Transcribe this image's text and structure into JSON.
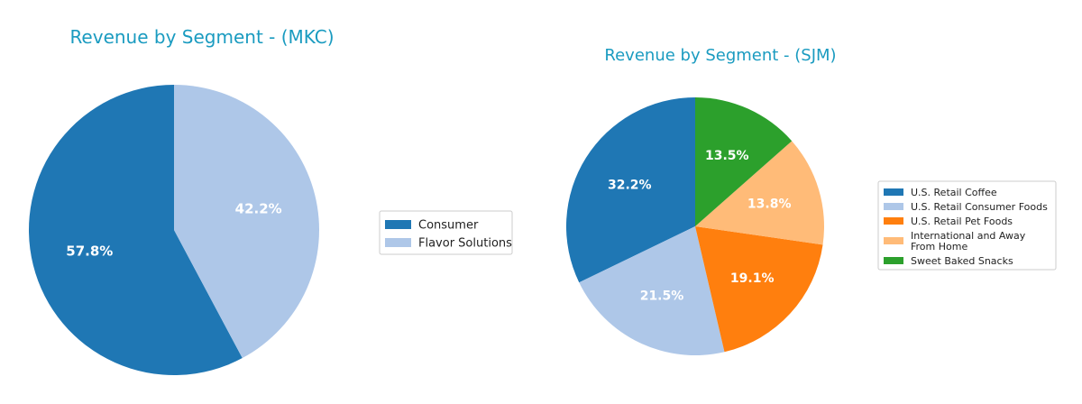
{
  "chart_data": [
    {
      "type": "pie",
      "title": "Revenue by Segment - (MKC)",
      "labels": [
        "Consumer",
        "Flavor Solutions"
      ],
      "values": [
        57.8,
        42.2
      ],
      "value_labels": [
        "57.8%",
        "42.2%"
      ],
      "colors": [
        "#1f77b4",
        "#aec7e8"
      ],
      "legend": {
        "placement": "right",
        "entries": [
          "Consumer",
          "Flavor Solutions"
        ]
      }
    },
    {
      "type": "pie",
      "title": "Revenue by Segment - (SJM)",
      "labels": [
        "U.S. Retail Coffee",
        "U.S. Retail Consumer Foods",
        "U.S. Retail Pet Foods",
        "International and Away From Home",
        "Sweet Baked Snacks"
      ],
      "values": [
        32.2,
        21.5,
        19.1,
        13.8,
        13.5
      ],
      "value_labels": [
        "32.2%",
        "21.5%",
        "19.1%",
        "13.8%",
        "13.5%"
      ],
      "colors": [
        "#1f77b4",
        "#aec7e8",
        "#ff7f0e",
        "#ffbb78",
        "#2ca02c"
      ],
      "legend": {
        "placement": "right",
        "entries": [
          [
            "U.S. Retail Coffee"
          ],
          [
            "U.S. Retail Consumer Foods"
          ],
          [
            "U.S. Retail Pet Foods"
          ],
          [
            "International and Away",
            "From Home"
          ],
          [
            "Sweet Baked Snacks"
          ]
        ]
      }
    }
  ]
}
